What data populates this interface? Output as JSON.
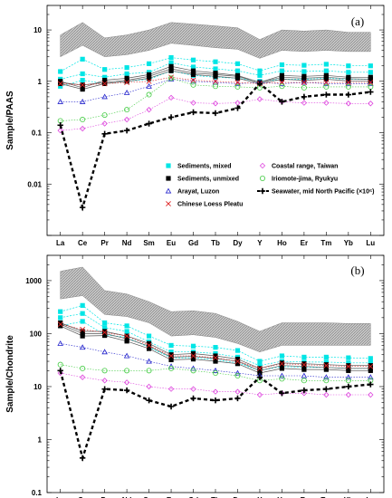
{
  "chart_data": [
    {
      "type": "line",
      "panel_label": "(a)",
      "ylabel": "Sample/PAAS",
      "yscale": "log",
      "ylim": [
        0.001,
        30
      ],
      "yticks": [
        "0.01",
        "0.1",
        "1",
        "10"
      ],
      "categories": [
        "La",
        "Ce",
        "Pr",
        "Nd",
        "Sm",
        "Eu",
        "Gd",
        "Tb",
        "Dy",
        "Y",
        "Ho",
        "Er",
        "Tm",
        "Yb",
        "Lu"
      ],
      "band": {
        "upper": [
          8,
          14,
          7,
          8,
          10,
          14,
          13,
          12,
          11,
          6.5,
          10,
          9.5,
          10,
          9,
          9
        ],
        "lower": [
          3,
          5,
          3,
          3.3,
          4,
          5.5,
          5,
          4.5,
          4.2,
          2.8,
          4,
          3.8,
          4,
          3.8,
          3.8
        ]
      },
      "series": [
        {
          "name": "Sediments, mixed",
          "style": "mixed",
          "color": "#00e5e5",
          "lines": [
            [
              1.55,
              2.7,
              1.7,
              1.85,
              2.2,
              2.9,
              2.6,
              2.4,
              2.2,
              1.6,
              2.1,
              2.05,
              2.15,
              2.0,
              2.0
            ],
            [
              1.1,
              1.4,
              1.2,
              1.4,
              1.5,
              2.3,
              1.9,
              1.75,
              1.6,
              1.3,
              1.6,
              1.55,
              1.6,
              1.5,
              1.5
            ],
            [
              0.8,
              1.05,
              0.9,
              1.0,
              1.1,
              1.6,
              1.3,
              1.2,
              1.15,
              1.0,
              1.1,
              1.1,
              1.15,
              1.1,
              1.1
            ]
          ]
        },
        {
          "name": "Sediments, unmixed",
          "style": "unmixed",
          "color": "#000000",
          "lines": [
            [
              1.0,
              0.75,
              1.05,
              1.15,
              1.35,
              1.95,
              1.6,
              1.45,
              1.3,
              0.95,
              1.3,
              1.25,
              1.3,
              1.2,
              1.2
            ],
            [
              0.95,
              0.85,
              0.95,
              1.05,
              1.25,
              1.75,
              1.45,
              1.35,
              1.25,
              0.95,
              1.2,
              1.15,
              1.2,
              1.12,
              1.1
            ],
            [
              0.9,
              0.7,
              0.9,
              1.0,
              1.15,
              1.6,
              1.35,
              1.25,
              1.15,
              0.9,
              1.1,
              1.05,
              1.1,
              1.02,
              1.0
            ]
          ]
        },
        {
          "name": "Arayat, Luzon",
          "style": "arayat",
          "color": "#2222cc",
          "values": [
            0.4,
            0.4,
            0.5,
            0.6,
            0.8,
            1.1,
            1.0,
            0.95,
            0.9,
            0.95,
            0.9,
            0.95,
            0.9,
            0.9,
            0.9
          ]
        },
        {
          "name": "Chinese Loess Pleatu",
          "style": "loess",
          "color": "#dd2222",
          "values": [
            0.9,
            0.85,
            0.9,
            0.95,
            1.0,
            1.2,
            1.05,
            1.0,
            0.95,
            0.9,
            0.95,
            0.95,
            0.95,
            0.95,
            0.95
          ]
        },
        {
          "name": "Coastal range, Taiwan",
          "style": "coastal",
          "color": "#dd44dd",
          "values": [
            0.11,
            0.12,
            0.15,
            0.18,
            0.28,
            0.48,
            0.38,
            0.37,
            0.38,
            0.45,
            0.4,
            0.38,
            0.38,
            0.37,
            0.37
          ]
        },
        {
          "name": "Iriomote-jima, Ryukyu",
          "style": "iriomote",
          "color": "#44cc44",
          "values": [
            0.17,
            0.18,
            0.22,
            0.28,
            0.55,
            1.15,
            0.85,
            0.8,
            0.78,
            0.75,
            0.8,
            0.75,
            0.78,
            0.78,
            0.78
          ]
        },
        {
          "name": "Seawater, mid North Pacific (×10⁶)",
          "style": "seawater",
          "color": "#000000",
          "values": [
            0.14,
            0.0035,
            0.095,
            0.11,
            0.15,
            0.2,
            0.25,
            0.24,
            0.3,
            0.9,
            0.4,
            0.5,
            0.55,
            0.55,
            0.62
          ]
        }
      ],
      "legend_position": "bottom-right"
    },
    {
      "type": "line",
      "panel_label": "(b)",
      "ylabel": "Sample/Chondrite",
      "yscale": "log",
      "ylim": [
        0.1,
        3000
      ],
      "yticks": [
        "0.1",
        "1",
        "10",
        "100",
        "1000"
      ],
      "categories": [
        "La",
        "Ce",
        "Pr",
        "Nd",
        "Sm",
        "Eu",
        "Gd",
        "Tb",
        "Dy",
        "Y",
        "Ho",
        "Er",
        "Tm",
        "Yb",
        "Lu"
      ],
      "band": {
        "upper": [
          1500,
          1800,
          650,
          560,
          400,
          260,
          270,
          240,
          170,
          110,
          160,
          160,
          160,
          155,
          155
        ],
        "lower": [
          450,
          520,
          230,
          210,
          160,
          90,
          95,
          85,
          65,
          45,
          60,
          60,
          60,
          60,
          60
        ]
      },
      "series": [
        {
          "name": "Sediments, mixed",
          "style": "mixed",
          "color": "#00e5e5",
          "lines": [
            [
              260,
              340,
              160,
              140,
              90,
              60,
              58,
              55,
              48,
              30,
              38,
              36,
              36,
              35,
              34
            ],
            [
              200,
              240,
              130,
              110,
              70,
              45,
              45,
              42,
              36,
              25,
              30,
              29,
              29,
              28,
              28
            ],
            [
              140,
              170,
              95,
              85,
              55,
              35,
              35,
              32,
              28,
              20,
              24,
              23,
              23,
              22,
              22
            ]
          ]
        },
        {
          "name": "Sediments, unmixed",
          "style": "unmixed",
          "color": "#000000",
          "lines": [
            [
              160,
              110,
              110,
              90,
              65,
              40,
              42,
              38,
              33,
              22,
              28,
              27,
              26,
              25,
              25
            ],
            [
              150,
              100,
              100,
              80,
              58,
              36,
              37,
              34,
              30,
              20,
              25,
              24,
              23,
              22,
              22
            ],
            [
              140,
              90,
              92,
              72,
              52,
              32,
              33,
              30,
              27,
              18,
              22,
              21,
              21,
              20,
              20
            ]
          ]
        },
        {
          "name": "Arayat, Luzon",
          "style": "arayat",
          "color": "#2222cc",
          "values": [
            65,
            55,
            45,
            38,
            30,
            24,
            22,
            20,
            18,
            16,
            16,
            16,
            15,
            15,
            15
          ]
        },
        {
          "name": "Chinese Loess Pleatu",
          "style": "loess",
          "color": "#dd2222",
          "values": [
            150,
            120,
            105,
            90,
            60,
            38,
            38,
            35,
            30,
            22,
            27,
            26,
            25,
            24,
            24
          ]
        },
        {
          "name": "Coastal range, Taiwan",
          "style": "coastal",
          "color": "#dd44dd",
          "values": [
            18,
            15,
            13,
            12,
            10,
            9,
            9,
            8,
            8,
            7,
            7.5,
            7.5,
            7,
            7,
            7
          ]
        },
        {
          "name": "Iriomote-jima, Ryukyu",
          "style": "iriomote",
          "color": "#44cc44",
          "values": [
            26,
            22,
            20,
            20,
            20,
            22,
            20,
            18,
            16,
            13,
            14,
            13,
            13,
            13,
            13
          ]
        },
        {
          "name": "Seawater, mid North Pacific (×10⁶)",
          "style": "seawater",
          "color": "#000000",
          "values": [
            20,
            0.45,
            9,
            8.5,
            5.5,
            4.2,
            6,
            5.5,
            6,
            15,
            7.5,
            8.5,
            9,
            10,
            11
          ]
        }
      ]
    }
  ]
}
